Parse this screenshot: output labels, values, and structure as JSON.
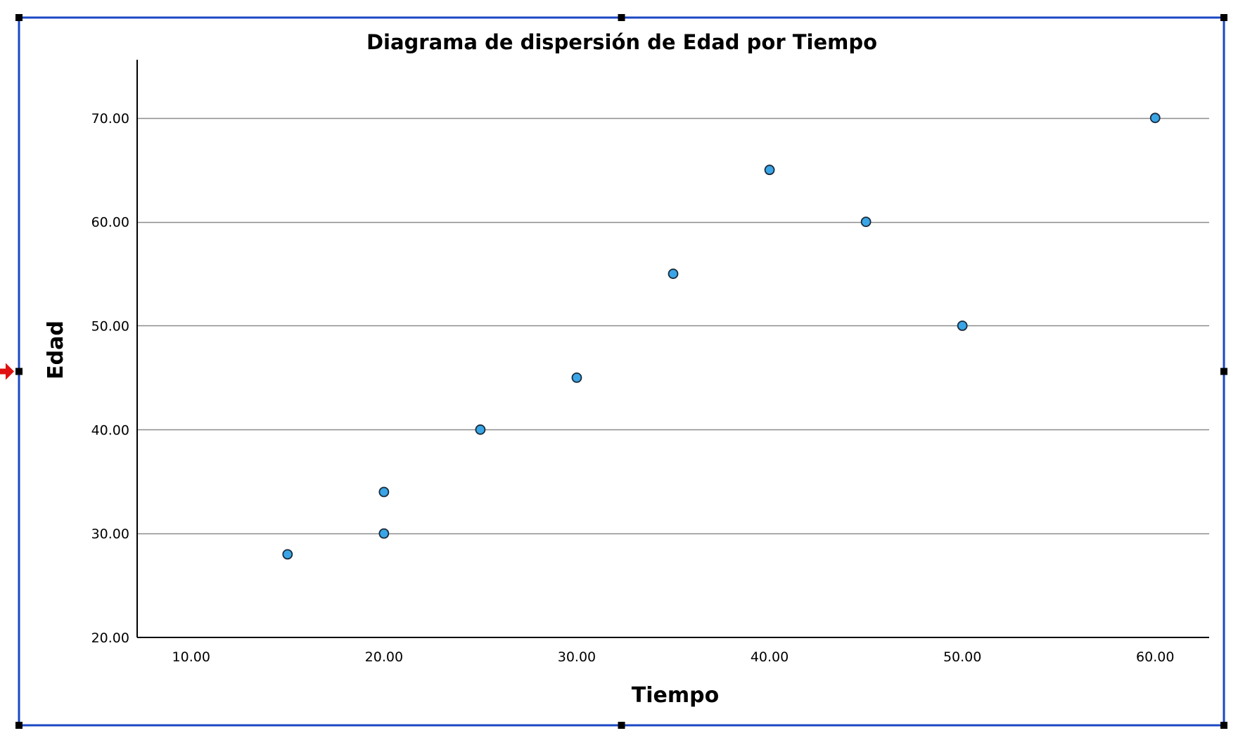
{
  "chart_data": {
    "type": "scatter",
    "title": "Diagrama de dispersión de Edad por Tiempo",
    "xlabel": "Tiempo",
    "ylabel": "Edad",
    "xlim": [
      7.2,
      62.8
    ],
    "ylim": [
      20,
      75.6
    ],
    "x_ticks": [
      10,
      20,
      30,
      40,
      50,
      60
    ],
    "y_ticks": [
      20,
      30,
      40,
      50,
      60,
      70
    ],
    "x_tick_labels": [
      "10.00",
      "20.00",
      "30.00",
      "40.00",
      "50.00",
      "60.00"
    ],
    "y_tick_labels": [
      "20.00",
      "30.00",
      "40.00",
      "50.00",
      "60.00",
      "70.00"
    ],
    "grid": "horizontal",
    "points": [
      {
        "x": 15,
        "y": 28
      },
      {
        "x": 20,
        "y": 30
      },
      {
        "x": 20,
        "y": 34
      },
      {
        "x": 25,
        "y": 40
      },
      {
        "x": 30,
        "y": 45
      },
      {
        "x": 35,
        "y": 55
      },
      {
        "x": 40,
        "y": 65
      },
      {
        "x": 45,
        "y": 60
      },
      {
        "x": 50,
        "y": 50
      },
      {
        "x": 60,
        "y": 70
      }
    ],
    "colors": {
      "point_fill": "#3aa5e6",
      "point_stroke": "#1a2a3a",
      "gridline": "#8c8c8c",
      "axis": "#000000",
      "selection_frame": "#1a47c4",
      "handle": "#000000",
      "marker_arrow": "#e01010"
    }
  }
}
